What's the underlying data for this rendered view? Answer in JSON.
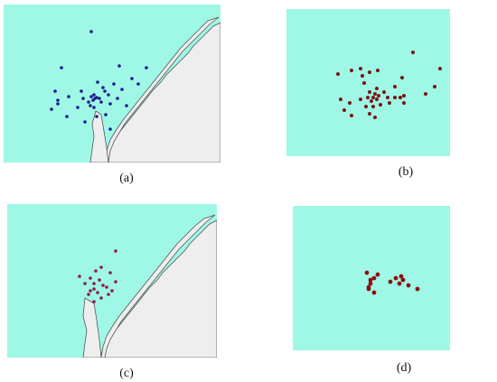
{
  "colors": {
    "water": "#9ff8e5",
    "land": "#eeeeee",
    "coast": "#555555",
    "dots_a": "#1a1a8c",
    "dots_b": "#7a1414",
    "dots_c": "#8b1a4a",
    "dots_d": "#8c1010"
  },
  "panels": [
    {
      "id": "a",
      "label": "(a)",
      "map": "coastline",
      "dot_count": 38
    },
    {
      "id": "b",
      "label": "(b)",
      "map": "plain",
      "dot_count": 38
    },
    {
      "id": "c",
      "label": "(c)",
      "map": "coastline",
      "dot_count": 20
    },
    {
      "id": "d",
      "label": "(d)",
      "map": "plain",
      "dot_count": 15
    }
  ]
}
